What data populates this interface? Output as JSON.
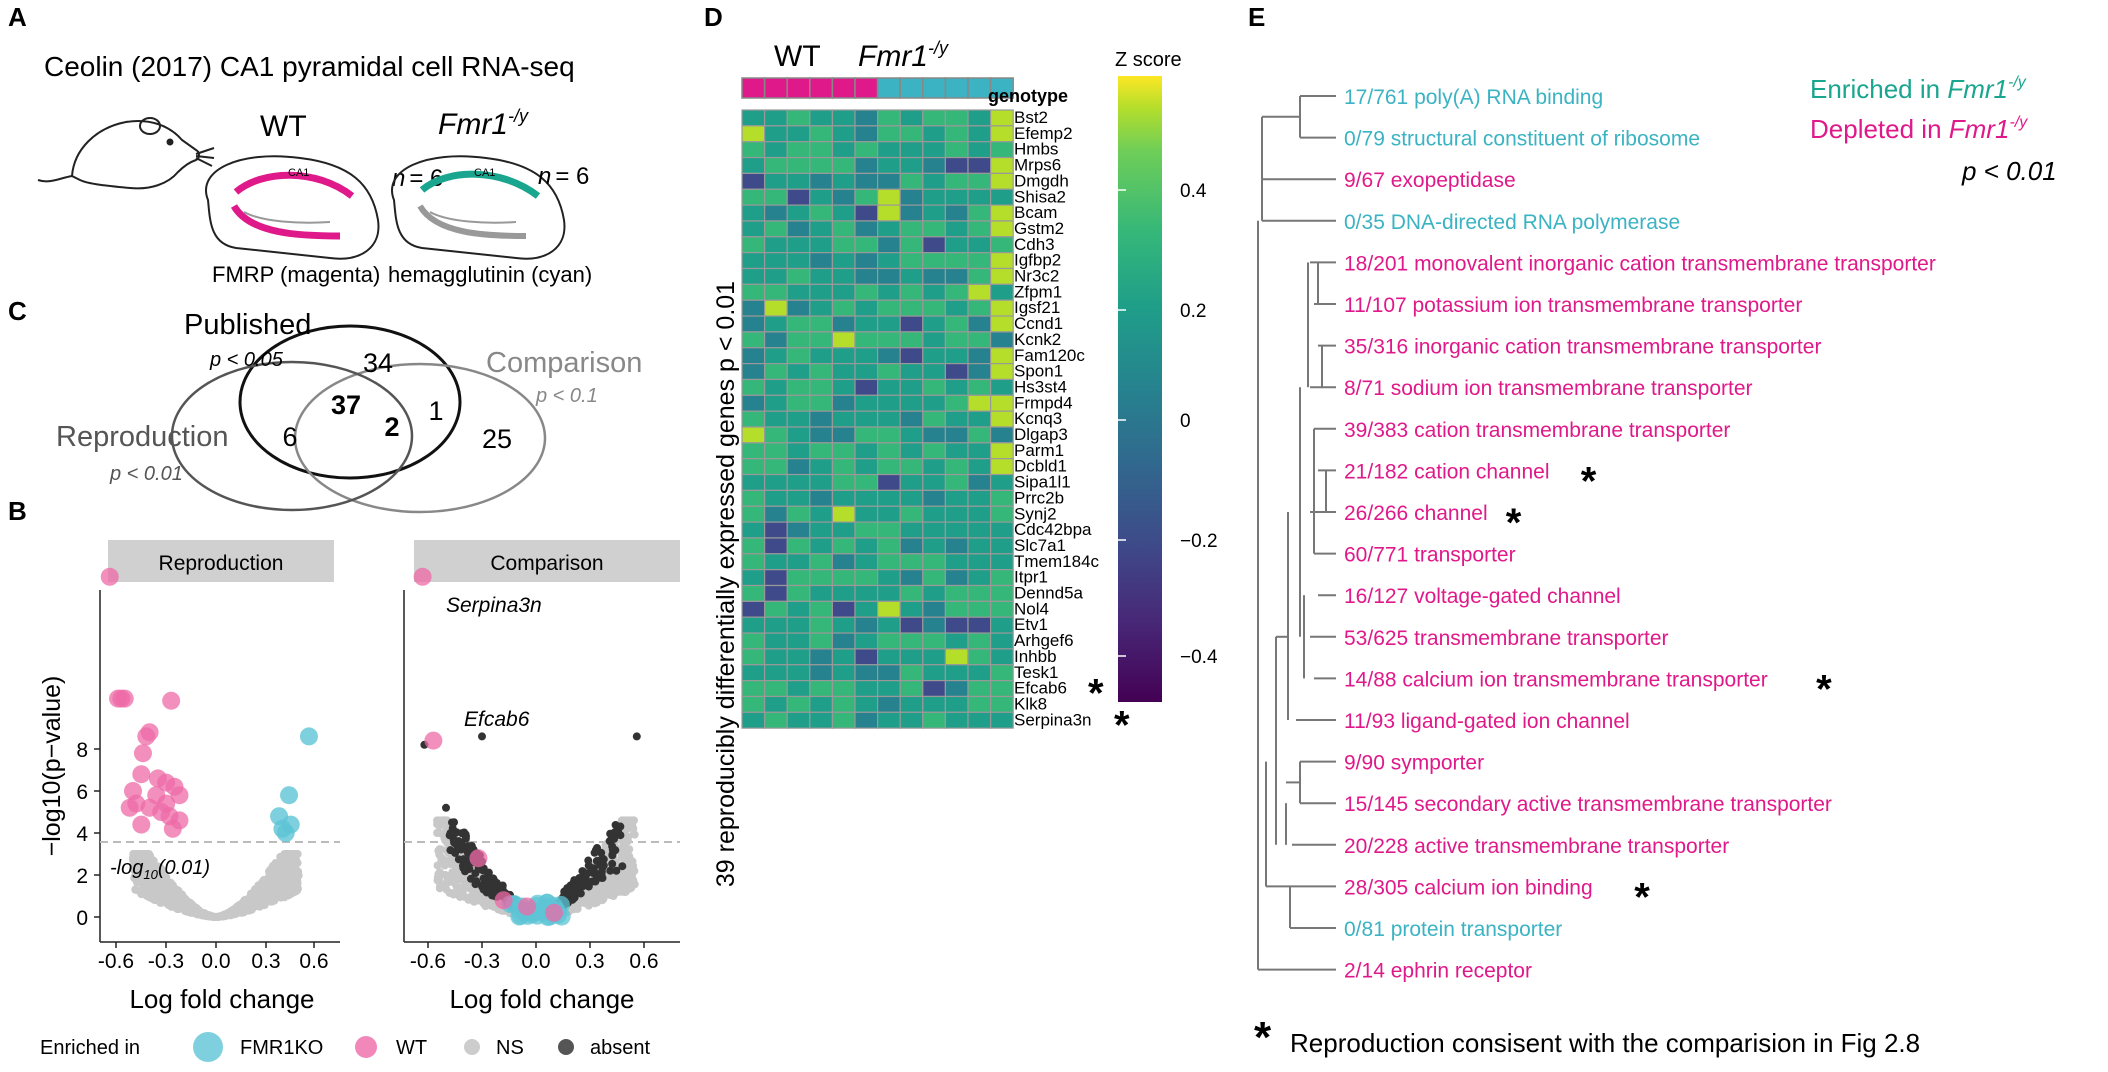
{
  "panels": {
    "A": {
      "letter": "A",
      "title": "Ceolin (2017) CA1 pyramidal cell RNA-seq",
      "wt_label": "WT",
      "ko_label_main": "Fmr1",
      "ko_label_sup": "-/y",
      "n_wt": "= 6",
      "n_ko": "= 6",
      "n_symbol": "n",
      "ca1_label": "CA1",
      "caption_wt": "FMRP (magenta)",
      "caption_ko": "hemagglutinin (cyan)"
    },
    "C": {
      "letter": "C",
      "published": "Published",
      "published_p": "p < 0.05",
      "comparison": "Comparison",
      "comparison_p": "p < 0.1",
      "reproduction": "Reproduction",
      "reproduction_p": "p < 0.01",
      "counts": {
        "pub_only": "34",
        "pub_rep": "37",
        "all_three": "2",
        "pub_comp": "1",
        "rep_only": "6",
        "comp_only": "25"
      }
    },
    "B": {
      "letter": "B",
      "facet_left": "Reproduction",
      "facet_right": "Comparison",
      "ylabel": "−log10(p−value)",
      "xlabel": "Log fold change",
      "threshold_label": "-log",
      "threshold_sub": "10",
      "threshold_tail": "(0.01)",
      "gene_a": "Serpina3n",
      "gene_b": "Efcab6",
      "xticks": [
        "-0.6",
        "-0.3",
        "0.0",
        "0.3",
        "0.6"
      ],
      "yticks": [
        "0",
        "2",
        "4",
        "6",
        "8"
      ],
      "legend": {
        "title": "Enriched in",
        "items": [
          "FMR1KO",
          "WT",
          "NS",
          "absent"
        ],
        "colors": [
          "#5ec4d6",
          "#ee6aa7",
          "#cccccc",
          "#555555"
        ]
      }
    },
    "D": {
      "letter": "D",
      "wt_label": "WT",
      "ko_label_main": "Fmr1",
      "ko_label_sup": "-/y",
      "genotype_label": "genotype",
      "ylabel": "39 reproducibly differentially expressed genes p < 0.01",
      "colorbar_title": "Z score",
      "colorbar_ticks": [
        "0.4",
        "0.2",
        "0",
        "−0.2",
        "−0.4"
      ],
      "genes": [
        "Bst2",
        "Efemp2",
        "Hmbs",
        "Mrps6",
        "Dmgdh",
        "Shisa2",
        "Bcam",
        "Gstm2",
        "Cdh3",
        "Igfbp2",
        "Nr3c2",
        "Zfpm1",
        "Igsf21",
        "Ccnd1",
        "Kcnk2",
        "Fam120c",
        "Spon1",
        "Hs3st4",
        "Frmpd4",
        "Kcnq3",
        "Dlgap3",
        "Parm1",
        "Dcbld1",
        "Sipa1l1",
        "Prrc2b",
        "Synj2",
        "Cdc42bpa",
        "Slc7a1",
        "Tmem184c",
        "Itpr1",
        "Dennd5a",
        "Nol4",
        "Etv1",
        "Arhgef6",
        "Inhbb",
        "Tesk1",
        "Efcab6",
        "Klk8",
        "Serpina3n"
      ],
      "starred_genes": [
        36,
        38
      ]
    },
    "E": {
      "letter": "E",
      "legend_enriched": "Enriched in ",
      "legend_depleted": "Depleted in ",
      "legend_fmr": "Fmr1",
      "legend_sup": "-/y",
      "legend_p": "p < 0.01",
      "terms": [
        {
          "text": "17/761 poly(A) RNA binding",
          "cls": "cyan",
          "star": false
        },
        {
          "text": "0/79 structural constituent of ribosome",
          "cls": "cyan",
          "star": false
        },
        {
          "text": "9/67 exopeptidase",
          "cls": "magenta",
          "star": false
        },
        {
          "text": "0/35 DNA-directed RNA polymerase",
          "cls": "cyan",
          "star": false
        },
        {
          "text": "18/201 monovalent inorganic cation transmembrane transporter",
          "cls": "magenta",
          "star": false
        },
        {
          "text": "11/107 potassium ion transmembrane transporter",
          "cls": "magenta",
          "star": false
        },
        {
          "text": "35/316 inorganic cation transmembrane transporter",
          "cls": "magenta",
          "star": false
        },
        {
          "text": "8/71 sodium ion transmembrane transporter",
          "cls": "magenta",
          "star": false
        },
        {
          "text": "39/383 cation transmembrane transporter",
          "cls": "magenta",
          "star": false
        },
        {
          "text": "21/182 cation channel",
          "cls": "magenta",
          "star": true
        },
        {
          "text": "26/266 channel",
          "cls": "magenta",
          "star": true
        },
        {
          "text": "60/771 transporter",
          "cls": "magenta",
          "star": false
        },
        {
          "text": "16/127 voltage-gated channel",
          "cls": "magenta",
          "star": false
        },
        {
          "text": "53/625 transmembrane transporter",
          "cls": "magenta",
          "star": false
        },
        {
          "text": "14/88 calcium ion transmembrane transporter",
          "cls": "magenta",
          "star": true
        },
        {
          "text": "11/93 ligand-gated ion channel",
          "cls": "magenta",
          "star": false
        },
        {
          "text": "9/90 symporter",
          "cls": "magenta",
          "star": false
        },
        {
          "text": "15/145 secondary active transmembrane transporter",
          "cls": "magenta",
          "star": false
        },
        {
          "text": "20/228 active transmembrane transporter",
          "cls": "magenta",
          "star": false
        },
        {
          "text": "28/305 calcium ion binding",
          "cls": "magenta",
          "star": true
        },
        {
          "text": "0/81 protein transporter",
          "cls": "cyan",
          "star": false
        },
        {
          "text": "2/14 ephrin receptor",
          "cls": "magenta",
          "star": false
        }
      ],
      "footnote": "Reproduction consisent with the comparision in Fig 2.8",
      "star_symbol": "*"
    }
  },
  "colors": {
    "magenta": "#e0198a",
    "cyan": "#3bb3c3",
    "teal": "#1aa58f"
  }
}
